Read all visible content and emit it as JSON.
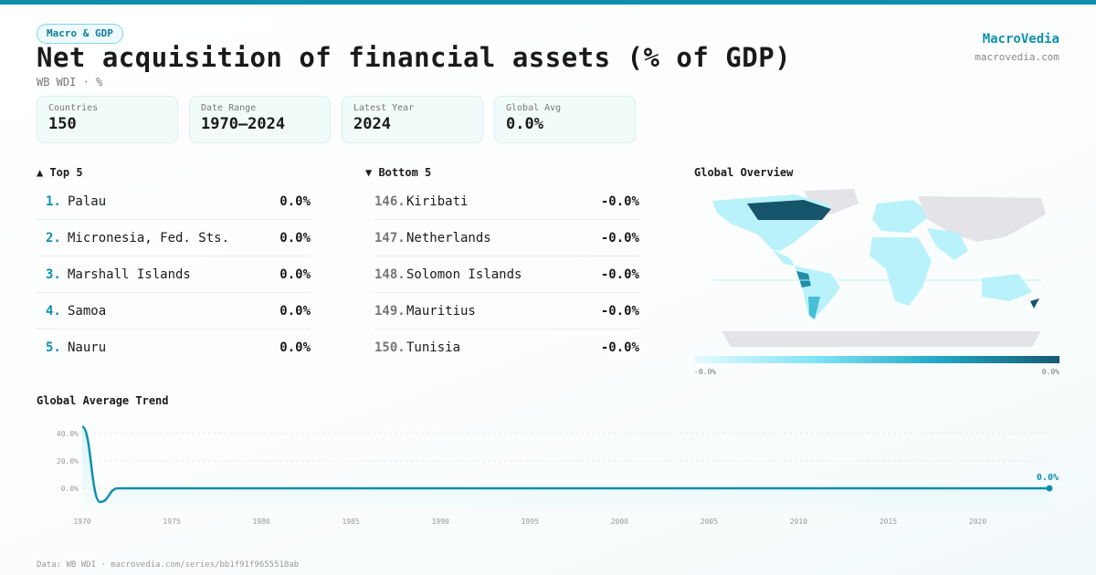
{
  "badge": "Macro & GDP",
  "title": "Net acquisition of financial assets (% of GDP)",
  "subtitle": "WB WDI · %",
  "brand": {
    "name": "MacroVedia",
    "url": "macrovedia.com"
  },
  "stats": [
    {
      "label": "Countries",
      "value": "150"
    },
    {
      "label": "Date Range",
      "value": "1970–2024"
    },
    {
      "label": "Latest Year",
      "value": "2024"
    },
    {
      "label": "Global Avg",
      "value": "0.0%"
    }
  ],
  "top5": {
    "title": "▲ Top 5",
    "items": [
      {
        "rank": "1.",
        "name": "Palau",
        "value": "0.0%"
      },
      {
        "rank": "2.",
        "name": "Micronesia, Fed. Sts.",
        "value": "0.0%"
      },
      {
        "rank": "3.",
        "name": "Marshall Islands",
        "value": "0.0%"
      },
      {
        "rank": "4.",
        "name": "Samoa",
        "value": "0.0%"
      },
      {
        "rank": "5.",
        "name": "Nauru",
        "value": "0.0%"
      }
    ]
  },
  "bottom5": {
    "title": "▼ Bottom 5",
    "items": [
      {
        "rank": "146.",
        "name": "Kiribati",
        "value": "-0.0%"
      },
      {
        "rank": "147.",
        "name": "Netherlands",
        "value": "-0.0%"
      },
      {
        "rank": "148.",
        "name": "Solomon Islands",
        "value": "-0.0%"
      },
      {
        "rank": "149.",
        "name": "Mauritius",
        "value": "-0.0%"
      },
      {
        "rank": "150.",
        "name": "Tunisia",
        "value": "-0.0%"
      }
    ]
  },
  "map": {
    "title": "Global Overview",
    "legend_min": "-0.0%",
    "legend_max": "0.0%"
  },
  "footer": "Data: WB WDI · macrovedia.com/series/bb1f91f9655518ab",
  "chart_data": {
    "type": "line",
    "title": "Global Average Trend",
    "x": [
      1970,
      1971,
      1972,
      1973,
      1974,
      1975,
      1976,
      1977,
      1978,
      1979,
      1980,
      1981,
      1982,
      1983,
      1984,
      1985,
      1986,
      1987,
      1988,
      1989,
      1990,
      1991,
      1992,
      1993,
      1994,
      1995,
      1996,
      1997,
      1998,
      1999,
      2000,
      2001,
      2002,
      2003,
      2004,
      2005,
      2006,
      2007,
      2008,
      2009,
      2010,
      2011,
      2012,
      2013,
      2014,
      2015,
      2016,
      2017,
      2018,
      2019,
      2020,
      2021,
      2022,
      2023,
      2024
    ],
    "y": [
      45,
      -10,
      0,
      0,
      0,
      0,
      0,
      0,
      0,
      0,
      0,
      0,
      0,
      0,
      0,
      0,
      0,
      0,
      0,
      0,
      0,
      0,
      0,
      0,
      0,
      0,
      0,
      0,
      0,
      0,
      0,
      0,
      0,
      0,
      0,
      0,
      0,
      0,
      0,
      0,
      0,
      0,
      0,
      0,
      0,
      0,
      0,
      0,
      0,
      0,
      0,
      0,
      0,
      0,
      0
    ],
    "yticks": [
      "0.0%",
      "20.0%",
      "40.0%"
    ],
    "ytick_values": [
      0,
      20,
      40
    ],
    "xticks": [
      "1970",
      "1975",
      "1980",
      "1985",
      "1990",
      "1995",
      "2000",
      "2005",
      "2010",
      "2015",
      "2020"
    ],
    "xlim": [
      1970,
      2024
    ],
    "ylim": [
      -15,
      45
    ],
    "end_label": "0.0%",
    "color": "#0e8fae"
  }
}
